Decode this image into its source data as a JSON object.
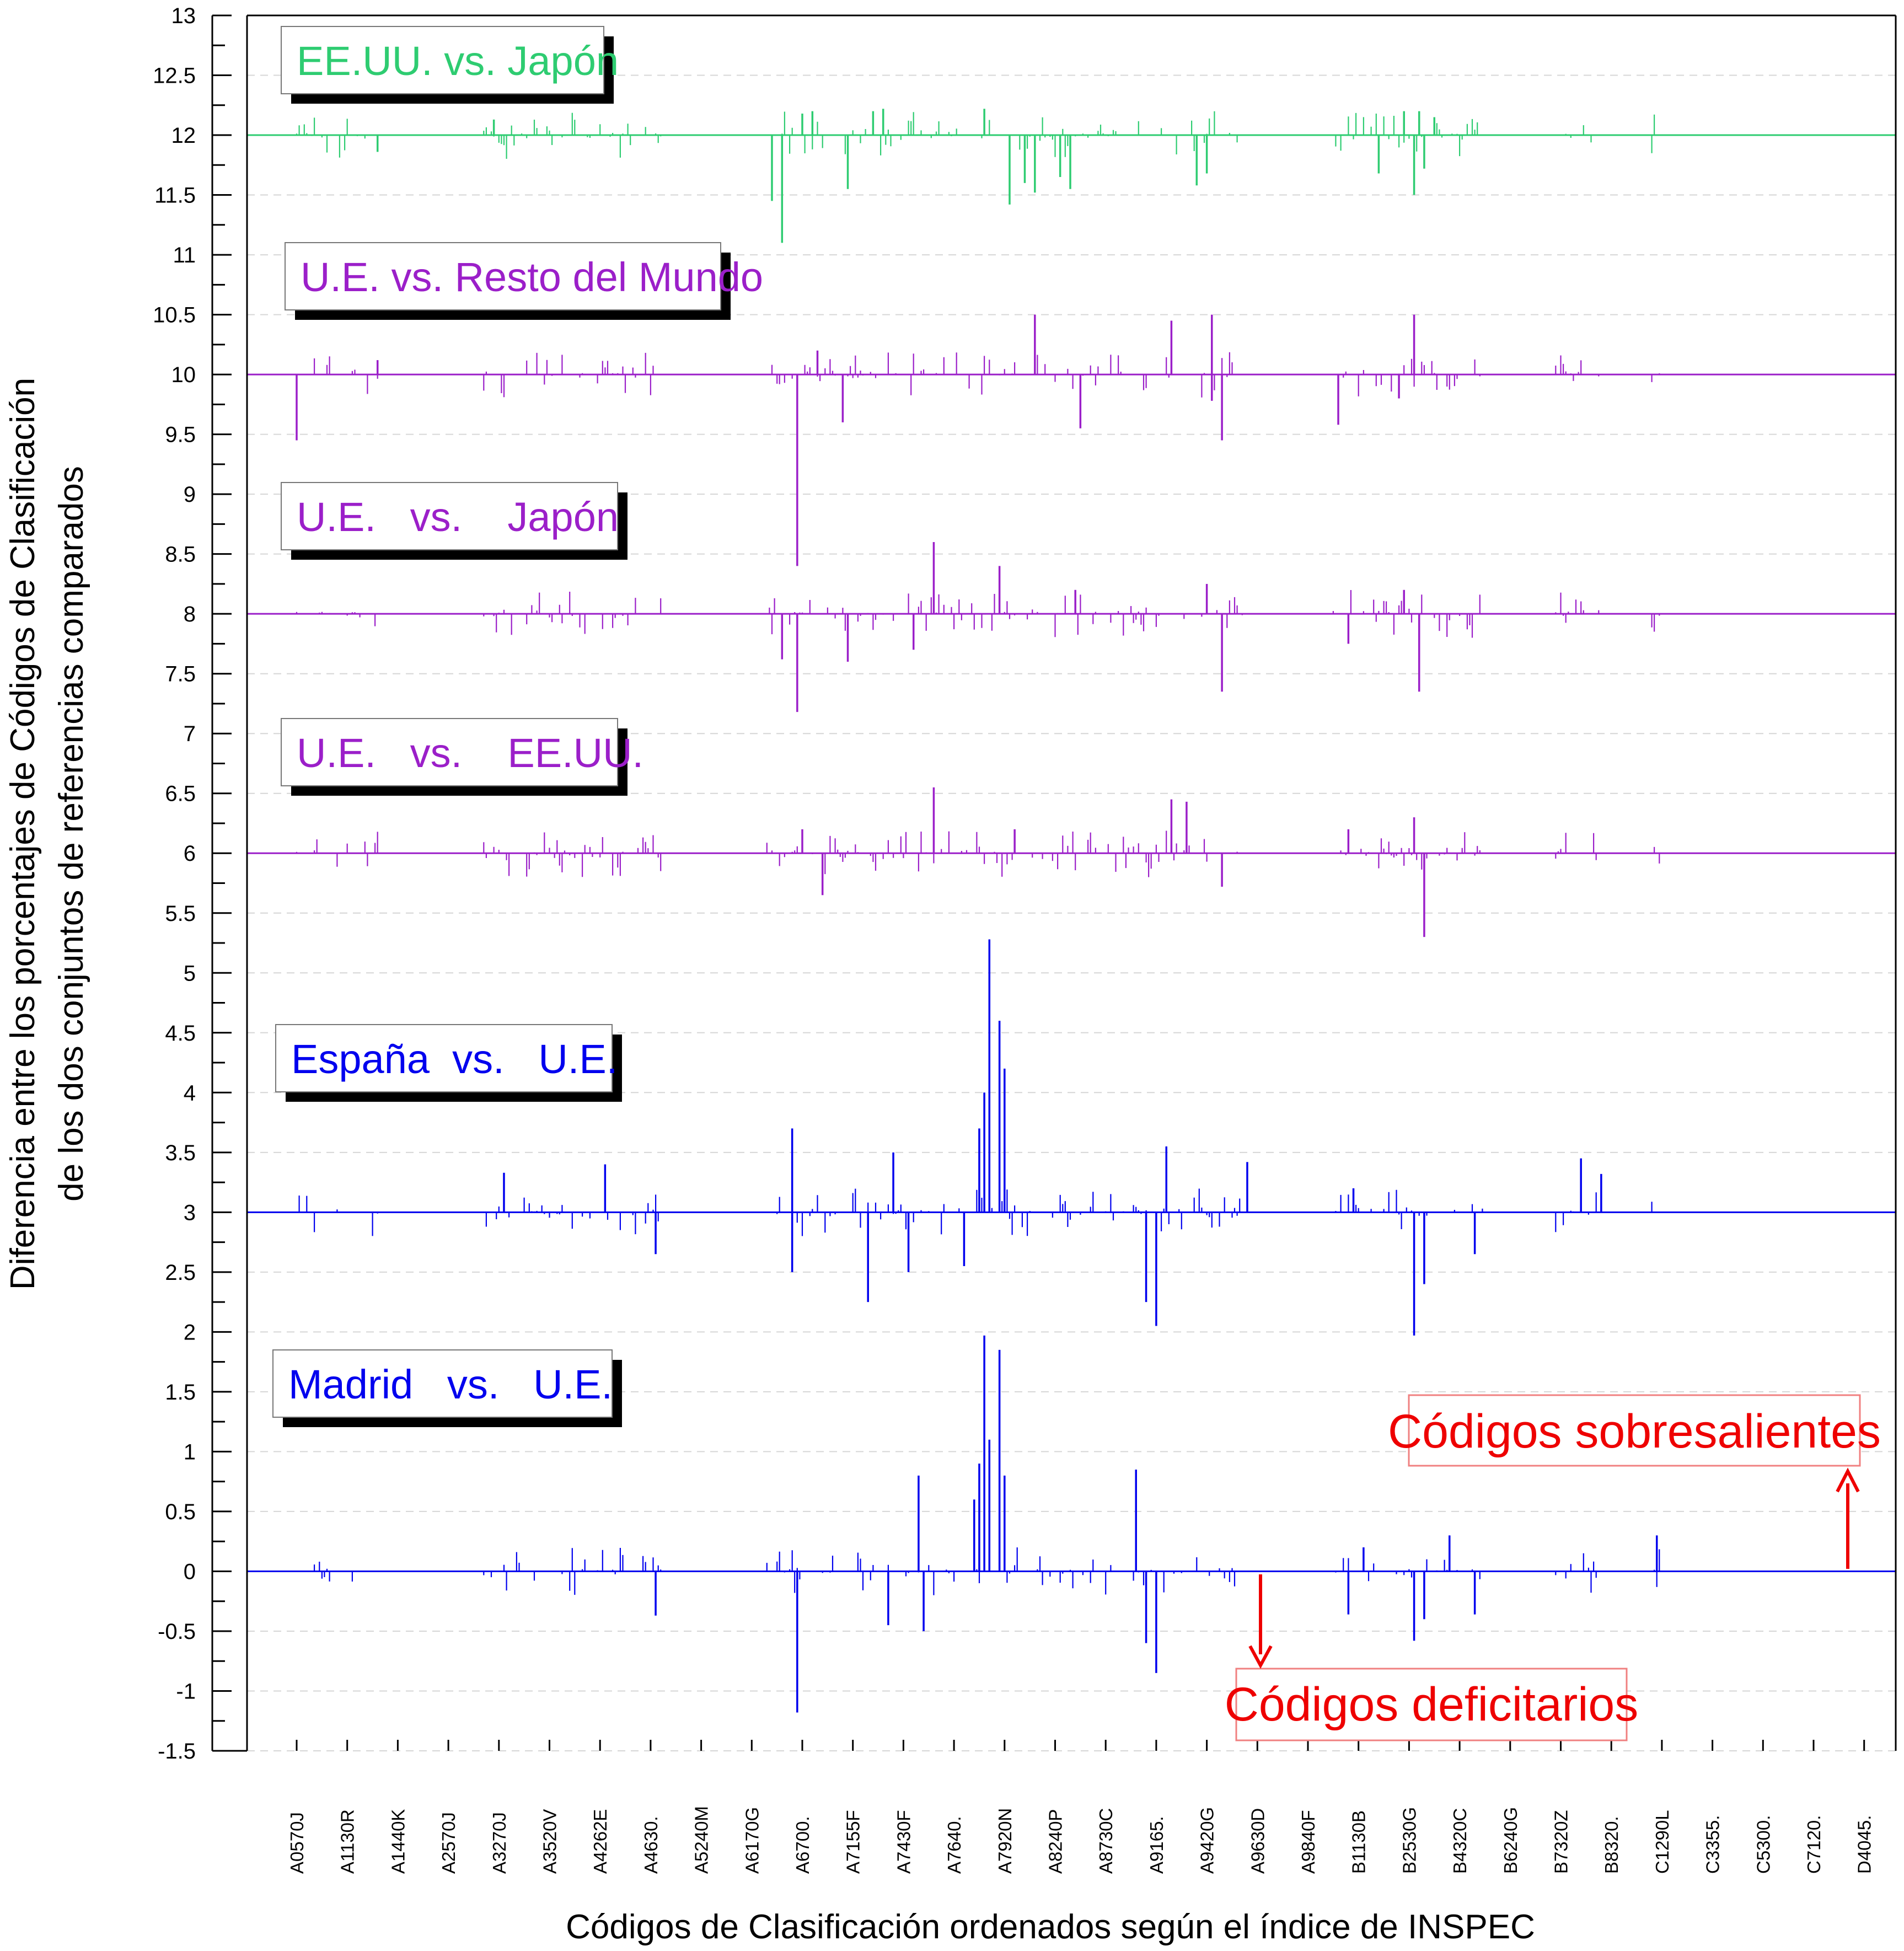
{
  "chart_data": {
    "type": "line",
    "xlabel": "Códigos de Clasificación ordenados según el índice de INSPEC",
    "ylabel": "Diferencia entre los porcentajes de Códigos de Clasificación",
    "ylabel2": "de los dos conjuntos de referencias comparados",
    "ylim": [
      -1.5,
      13
    ],
    "yticks": [
      "13",
      "12.5",
      "12",
      "11.5",
      "11",
      "10.5",
      "10",
      "9.5",
      "9",
      "8.5",
      "8",
      "7.5",
      "7",
      "6.5",
      "6",
      "5.5",
      "5",
      "4.5",
      "4",
      "3.5",
      "3",
      "2.5",
      "2",
      "1.5",
      "1",
      "0.5",
      "0",
      "-0.5",
      "-1",
      "-1.5"
    ],
    "xticks": [
      "A0570J",
      "A1130R",
      "A1440K",
      "A2570J",
      "A3270J",
      "A3520V",
      "A4262E",
      "A4630.",
      "A5240M",
      "A6170G",
      "A6700.",
      "A7155F",
      "A7430F",
      "A7640.",
      "A7920N",
      "A8240P",
      "A8730C",
      "A9165.",
      "A9420G",
      "A9630D",
      "A9840F",
      "B1130B",
      "B2530G",
      "B4320C",
      "B6240G",
      "B7320Z",
      "B8320.",
      "C1290L",
      "C3355.",
      "C5300.",
      "C7120.",
      "D4045."
    ],
    "grid": true,
    "series": [
      {
        "name": "EE.UU. vs. Japón",
        "baseline": 12,
        "color": "#2ecc71",
        "spikes": [
          [
            9.6,
            -0.9
          ],
          [
            9.4,
            -0.55
          ],
          [
            10.9,
            -0.45
          ],
          [
            14.1,
            -0.58
          ],
          [
            14.4,
            -0.4
          ],
          [
            14.6,
            -0.48
          ],
          [
            13.6,
            0.22
          ],
          [
            15.1,
            -0.35
          ],
          [
            15.3,
            -0.45
          ],
          [
            10.2,
            0.2
          ],
          [
            17.8,
            -0.42
          ],
          [
            18.0,
            -0.32
          ],
          [
            11.6,
            0.22
          ],
          [
            21.4,
            -0.32
          ],
          [
            22.1,
            -0.5
          ],
          [
            22.3,
            -0.28
          ],
          [
            21.9,
            0.2
          ],
          [
            22.2,
            0.2
          ],
          [
            22.5,
            0.15
          ],
          [
            10.0,
            0.18
          ],
          [
            11.4,
            0.2
          ],
          [
            3.9,
            0.13
          ],
          [
            1.6,
            -0.14
          ]
        ]
      },
      {
        "name": "U.E. vs. Resto del Mundo",
        "baseline": 10,
        "color": "#9b1fc9",
        "spikes": [
          [
            9.9,
            -1.6
          ],
          [
            0.0,
            -0.55
          ],
          [
            14.6,
            0.5
          ],
          [
            15.5,
            -0.45
          ],
          [
            17.3,
            0.45
          ],
          [
            18.1,
            0.5
          ],
          [
            18.3,
            -0.55
          ],
          [
            18.1,
            -0.22
          ],
          [
            10.8,
            -0.4
          ],
          [
            10.3,
            0.2
          ],
          [
            20.6,
            -0.42
          ],
          [
            22.1,
            0.5
          ],
          [
            21.8,
            -0.2
          ],
          [
            1.6,
            0.12
          ]
        ]
      },
      {
        "name": "U.E.   vs.    Japón",
        "baseline": 8,
        "color": "#9b1fc9",
        "spikes": [
          [
            9.9,
            -0.82
          ],
          [
            9.6,
            -0.38
          ],
          [
            12.6,
            0.6
          ],
          [
            12.2,
            -0.3
          ],
          [
            13.9,
            0.4
          ],
          [
            18.3,
            -0.65
          ],
          [
            18.0,
            0.25
          ],
          [
            22.2,
            -0.65
          ],
          [
            21.9,
            0.2
          ],
          [
            20.8,
            -0.25
          ],
          [
            15.4,
            0.2
          ],
          [
            10.9,
            -0.4
          ]
        ]
      },
      {
        "name": "U.E.   vs.    EE.UU.",
        "baseline": 6,
        "color": "#9b1fc9",
        "spikes": [
          [
            12.6,
            0.55
          ],
          [
            10.4,
            -0.35
          ],
          [
            18.3,
            -0.28
          ],
          [
            17.3,
            0.45
          ],
          [
            17.6,
            0.43
          ],
          [
            22.3,
            -0.7
          ],
          [
            22.1,
            0.3
          ],
          [
            20.8,
            0.2
          ],
          [
            10.0,
            0.2
          ],
          [
            14.2,
            0.2
          ]
        ]
      },
      {
        "name": "España  vs.   U.E.",
        "baseline": 3,
        "color": "#0000ee",
        "spikes": [
          [
            13.7,
            2.28
          ],
          [
            13.9,
            1.6
          ],
          [
            13.6,
            1.0
          ],
          [
            14.0,
            1.2
          ],
          [
            13.5,
            0.7
          ],
          [
            17.0,
            -0.95
          ],
          [
            16.8,
            -0.75
          ],
          [
            11.3,
            -0.75
          ],
          [
            9.8,
            0.7
          ],
          [
            9.8,
            -0.5
          ],
          [
            22.1,
            -1.03
          ],
          [
            22.3,
            -0.6
          ],
          [
            17.2,
            0.55
          ],
          [
            11.8,
            0.5
          ],
          [
            12.1,
            -0.5
          ],
          [
            13.2,
            -0.45
          ],
          [
            25.4,
            0.45
          ],
          [
            25.8,
            0.32
          ],
          [
            6.1,
            0.4
          ],
          [
            4.1,
            0.33
          ],
          [
            18.8,
            0.42
          ],
          [
            7.1,
            -0.35
          ],
          [
            23.3,
            -0.35
          ],
          [
            20.9,
            0.2
          ]
        ]
      },
      {
        "name": "Madrid   vs.   U.E.",
        "baseline": 0,
        "color": "#0000ee",
        "spikes": [
          [
            13.6,
            1.97
          ],
          [
            13.9,
            1.85
          ],
          [
            13.7,
            1.1
          ],
          [
            13.5,
            0.9
          ],
          [
            14.0,
            0.8
          ],
          [
            13.4,
            0.6
          ],
          [
            9.9,
            -1.18
          ],
          [
            12.3,
            0.8
          ],
          [
            16.6,
            0.85
          ],
          [
            17.0,
            -0.85
          ],
          [
            16.8,
            -0.6
          ],
          [
            12.4,
            -0.5
          ],
          [
            11.7,
            -0.45
          ],
          [
            22.1,
            -0.58
          ],
          [
            22.3,
            -0.4
          ],
          [
            23.3,
            -0.36
          ],
          [
            26.9,
            0.3
          ],
          [
            7.1,
            -0.37
          ],
          [
            21.1,
            0.2
          ],
          [
            22.8,
            0.3
          ],
          [
            20.8,
            -0.36
          ]
        ]
      }
    ],
    "annotations": [
      {
        "text": "Códigos sobresalientes",
        "direction": "up"
      },
      {
        "text": "Códigos deficitarios",
        "direction": "down"
      }
    ]
  }
}
